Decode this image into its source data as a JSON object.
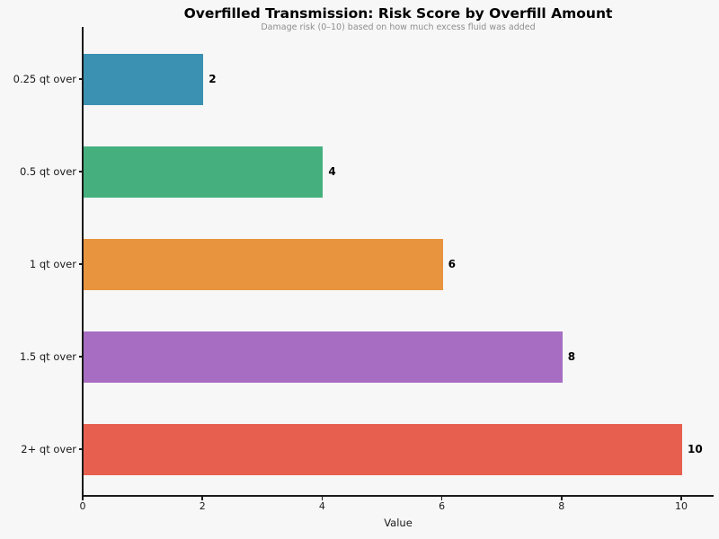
{
  "chart_data": {
    "type": "bar",
    "orientation": "horizontal",
    "title": "Overfilled Transmission: Risk Score by Overfill Amount",
    "subtitle": "Damage risk (0–10) based on how much excess fluid was added",
    "xlabel": "Value",
    "ylabel": "",
    "categories": [
      "0.25 qt over",
      "0.5 qt over",
      "1 qt over",
      "1.5 qt over",
      "2+ qt over"
    ],
    "values": [
      2,
      4,
      6,
      8,
      10
    ],
    "value_labels": [
      "2",
      "4",
      "6",
      "8",
      "10"
    ],
    "bar_colors": [
      "#3a91b1",
      "#45b07e",
      "#e8933e",
      "#a76dc2",
      "#e7604f"
    ],
    "xlim": [
      0,
      10.55
    ],
    "xticks": [
      0,
      2,
      4,
      6,
      8,
      10
    ],
    "grid": false,
    "legend": null,
    "background_color": "#f7f7f7",
    "axis_color": "#1a1a1a",
    "subtitle_color": "#8e8e8e"
  }
}
